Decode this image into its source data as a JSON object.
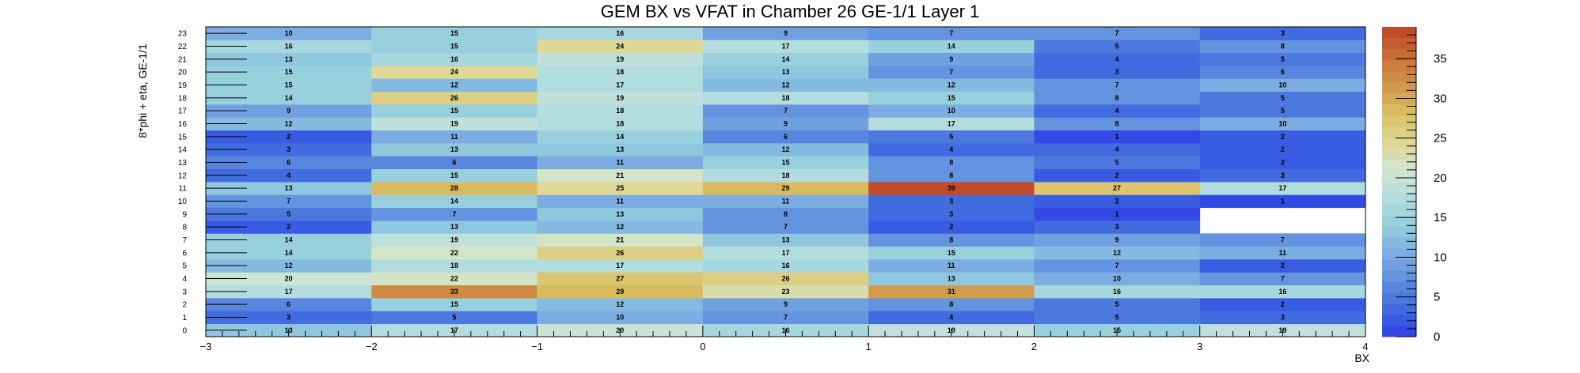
{
  "chart_data": {
    "type": "heatmap",
    "title": "GEM BX vs VFAT in Chamber 26 GE-1/1 Layer 1",
    "xlabel": "BX",
    "ylabel": "8*phi + eta, GE-1/1",
    "xlim": [
      -3,
      4
    ],
    "ylim": [
      0,
      24
    ],
    "zlim": [
      0,
      39
    ],
    "x_ticks": [
      "−3",
      "−2",
      "−1",
      "0",
      "1",
      "2",
      "3",
      "4"
    ],
    "y_ticks": [
      "0",
      "1",
      "2",
      "3",
      "4",
      "5",
      "6",
      "7",
      "8",
      "9",
      "10",
      "11",
      "12",
      "13",
      "14",
      "15",
      "16",
      "17",
      "18",
      "19",
      "20",
      "21",
      "22",
      "23"
    ],
    "z_ticks": [
      "0",
      "5",
      "10",
      "15",
      "20",
      "25",
      "30",
      "35"
    ],
    "x_bins": [
      "-3 to -2",
      "-2 to -1",
      "-1 to 0",
      "0 to 1",
      "1 to 2",
      "2 to 3",
      "3 to 4"
    ],
    "y_bins": [
      0,
      1,
      2,
      3,
      4,
      5,
      6,
      7,
      8,
      9,
      10,
      11,
      12,
      13,
      14,
      15,
      16,
      17,
      18,
      19,
      20,
      21,
      22,
      23
    ],
    "values": [
      [
        13,
        17,
        20,
        16,
        19,
        15,
        19
      ],
      [
        3,
        5,
        10,
        7,
        4,
        5,
        3
      ],
      [
        6,
        15,
        12,
        9,
        8,
        5,
        2
      ],
      [
        17,
        33,
        29,
        23,
        31,
        16,
        16
      ],
      [
        20,
        22,
        27,
        26,
        13,
        10,
        7
      ],
      [
        12,
        18,
        17,
        16,
        11,
        7,
        2
      ],
      [
        14,
        22,
        26,
        17,
        15,
        12,
        11
      ],
      [
        14,
        19,
        21,
        13,
        8,
        9,
        7
      ],
      [
        2,
        13,
        12,
        7,
        2,
        3,
        null
      ],
      [
        5,
        7,
        13,
        8,
        3,
        1,
        null
      ],
      [
        7,
        14,
        11,
        11,
        3,
        2,
        1
      ],
      [
        13,
        28,
        25,
        29,
        39,
        27,
        17
      ],
      [
        4,
        15,
        21,
        18,
        8,
        2,
        3
      ],
      [
        6,
        6,
        11,
        15,
        8,
        5,
        2
      ],
      [
        3,
        13,
        13,
        12,
        4,
        4,
        2
      ],
      [
        2,
        11,
        14,
        6,
        5,
        1,
        2
      ],
      [
        12,
        19,
        18,
        9,
        17,
        8,
        10
      ],
      [
        9,
        15,
        18,
        7,
        10,
        4,
        5
      ],
      [
        14,
        26,
        19,
        18,
        15,
        8,
        5
      ],
      [
        15,
        12,
        17,
        12,
        12,
        7,
        10
      ],
      [
        15,
        24,
        18,
        13,
        7,
        3,
        6
      ],
      [
        13,
        16,
        19,
        14,
        9,
        4,
        5
      ],
      [
        16,
        15,
        24,
        17,
        14,
        5,
        8
      ],
      [
        10,
        15,
        16,
        9,
        7,
        7,
        3
      ]
    ],
    "grid": false,
    "colorbar": "right"
  }
}
